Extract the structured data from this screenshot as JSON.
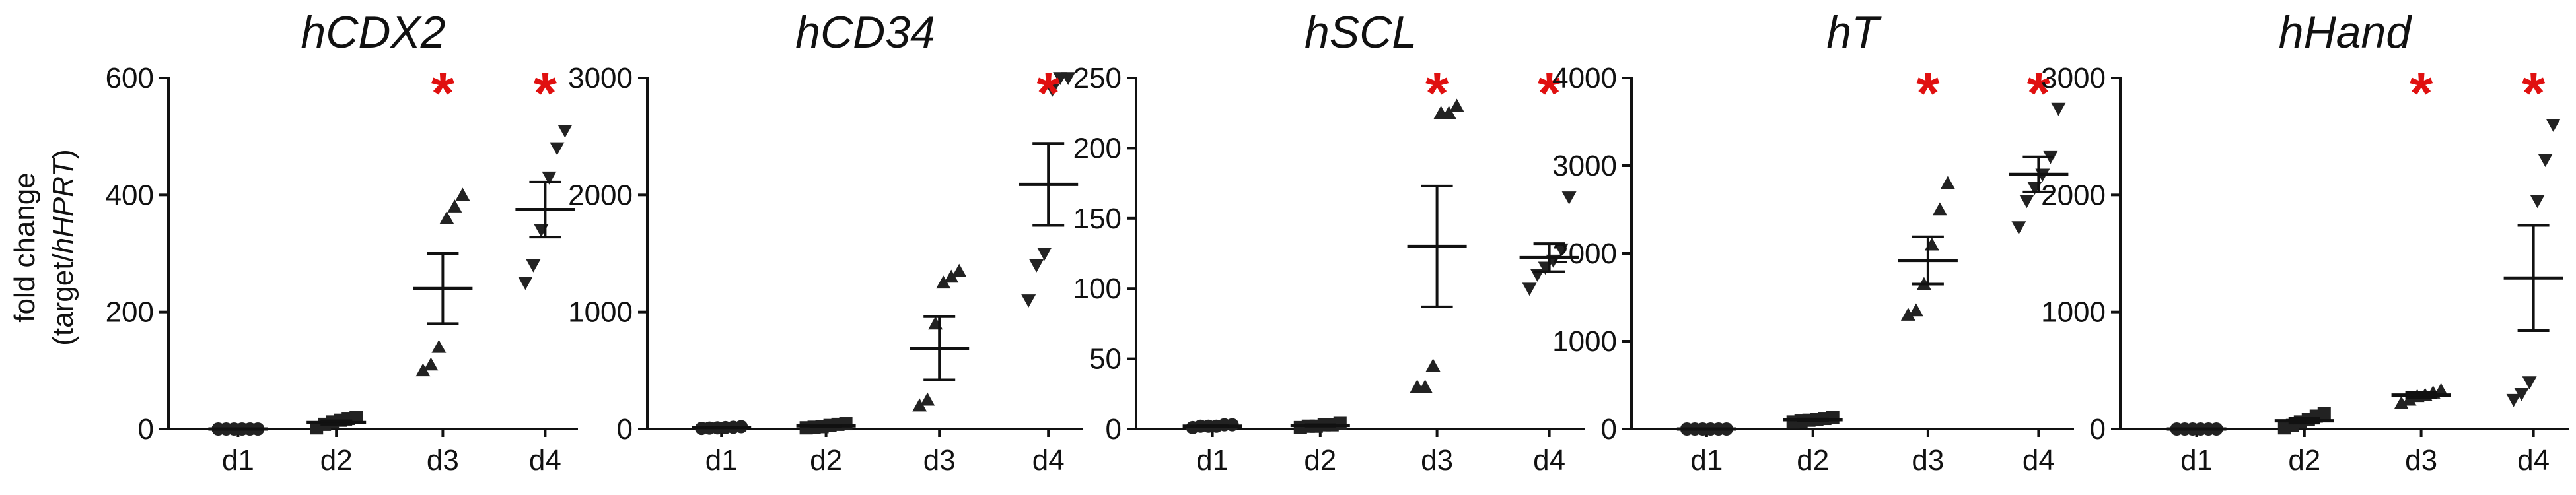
{
  "ylabel": {
    "line1": "fold change",
    "line2_pre": "(target/",
    "line2_it": "hHPRT",
    "line2_post": ")"
  },
  "colors": {
    "axis": "#111111",
    "marker": "#222222",
    "significance": "#e01010"
  },
  "chart_data": [
    {
      "type": "scatter",
      "title": "hCDX2",
      "categories": [
        "d1",
        "d2",
        "d3",
        "d4"
      ],
      "ylim": [
        0,
        600
      ],
      "yticks": [
        "0",
        "200",
        "400",
        "600"
      ],
      "marker_shapes": [
        "circle",
        "square",
        "triangle-up",
        "triangle-down"
      ],
      "points": [
        [
          0,
          0,
          0,
          0,
          0,
          0
        ],
        [
          2,
          8,
          12,
          15,
          18,
          20
        ],
        [
          100,
          110,
          140,
          360,
          380,
          400
        ],
        [
          250,
          280,
          340,
          430,
          480,
          510
        ]
      ],
      "mean": [
        0,
        11,
        240,
        375
      ],
      "sem": [
        0,
        3,
        60,
        47
      ],
      "significance": [
        "",
        "",
        "*",
        "*"
      ]
    },
    {
      "type": "scatter",
      "title": "hCD34",
      "categories": [
        "d1",
        "d2",
        "d3",
        "d4"
      ],
      "ylim": [
        0,
        3000
      ],
      "yticks": [
        "0",
        "1000",
        "2000",
        "3000"
      ],
      "marker_shapes": [
        "circle",
        "square",
        "triangle-up",
        "triangle-down"
      ],
      "points": [
        [
          5,
          8,
          10,
          12,
          15,
          20
        ],
        [
          10,
          15,
          20,
          30,
          40,
          45
        ],
        [
          200,
          250,
          900,
          1250,
          1300,
          1350
        ],
        [
          1100,
          1400,
          1500,
          2900,
          3000,
          3000
        ]
      ],
      "mean": [
        12,
        27,
        690,
        2090
      ],
      "sem": [
        2,
        6,
        270,
        350
      ],
      "significance": [
        "",
        "",
        "",
        "*"
      ]
    },
    {
      "type": "scatter",
      "title": "hSCL",
      "categories": [
        "d1",
        "d2",
        "d3",
        "d4"
      ],
      "ylim": [
        0,
        250
      ],
      "yticks": [
        "0",
        "50",
        "100",
        "150",
        "200",
        "250"
      ],
      "marker_shapes": [
        "circle",
        "square",
        "triangle-up",
        "triangle-down"
      ],
      "points": [
        [
          1,
          2,
          2,
          2,
          3,
          3
        ],
        [
          1,
          2,
          2,
          3,
          3,
          4
        ],
        [
          30,
          30,
          45,
          225,
          225,
          230
        ],
        [
          100,
          110,
          115,
          120,
          128,
          165
        ]
      ],
      "mean": [
        2,
        2.5,
        130,
        122
      ],
      "sem": [
        0.5,
        0.5,
        43,
        10
      ],
      "significance": [
        "",
        "",
        "*",
        "*"
      ]
    },
    {
      "type": "scatter",
      "title": "hT",
      "categories": [
        "d1",
        "d2",
        "d3",
        "d4"
      ],
      "ylim": [
        0,
        4000
      ],
      "yticks": [
        "0",
        "1000",
        "2000",
        "3000",
        "4000"
      ],
      "marker_shapes": [
        "circle",
        "square",
        "triangle-up",
        "triangle-down"
      ],
      "points": [
        [
          0,
          0,
          0,
          0,
          0,
          0
        ],
        [
          80,
          90,
          100,
          110,
          120,
          130
        ],
        [
          1300,
          1350,
          1650,
          2100,
          2500,
          2800
        ],
        [
          2300,
          2600,
          2750,
          2900,
          3100,
          3650
        ]
      ],
      "mean": [
        0,
        105,
        1920,
        2900
      ],
      "sem": [
        0,
        10,
        270,
        200
      ],
      "significance": [
        "",
        "",
        "*",
        "*"
      ]
    },
    {
      "type": "scatter",
      "title": "hHand",
      "categories": [
        "d1",
        "d2",
        "d3",
        "d4"
      ],
      "ylim": [
        0,
        3000
      ],
      "yticks": [
        "0",
        "1000",
        "2000",
        "3000"
      ],
      "marker_shapes": [
        "circle",
        "square",
        "triangle-up",
        "triangle-down"
      ],
      "points": [
        [
          0,
          0,
          0,
          0,
          0,
          0
        ],
        [
          10,
          30,
          60,
          80,
          110,
          130
        ],
        [
          220,
          250,
          280,
          290,
          310,
          330
        ],
        [
          250,
          300,
          400,
          1950,
          2300,
          2600
        ]
      ],
      "mean": [
        0,
        70,
        290,
        1290
      ],
      "sem": [
        0,
        20,
        20,
        450
      ],
      "significance": [
        "",
        "",
        "*",
        "*"
      ]
    }
  ]
}
